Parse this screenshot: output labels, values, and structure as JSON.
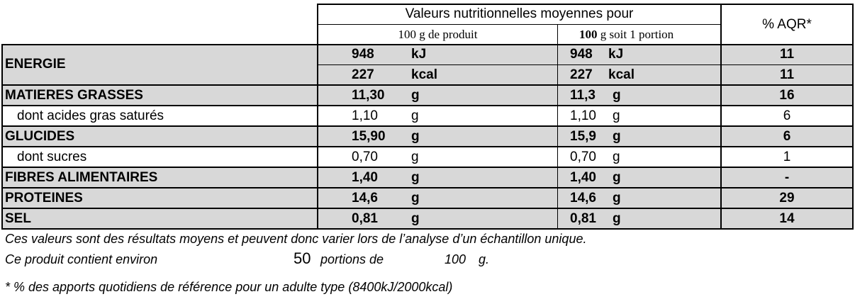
{
  "header": {
    "group_title": "Valeurs nutritionnelles moyennes pour",
    "col1_title": "100 g de produit",
    "col2_qty": "100",
    "col2_rest": " g soit 1 portion",
    "col3_title": "% AQR*"
  },
  "rows": [
    {
      "label": "ENERGIE",
      "bold": true,
      "shaded": true,
      "sub": [
        {
          "v1": "948",
          "u1": "kJ",
          "v2": "948",
          "u2": "kJ",
          "aqr": "11"
        },
        {
          "v1": "227",
          "u1": "kcal",
          "v2": "227",
          "u2": "kcal",
          "aqr": "11"
        }
      ]
    },
    {
      "label": "MATIERES GRASSES",
      "bold": true,
      "shaded": true,
      "v1": "11,30",
      "u1": "g",
      "v2": "11,3",
      "u2": "g",
      "aqr": "16"
    },
    {
      "label": "dont acides gras saturés",
      "bold": false,
      "shaded": false,
      "v1": "1,10",
      "u1": "g",
      "v2": "1,10",
      "u2": "g",
      "aqr": "6"
    },
    {
      "label": "GLUCIDES",
      "bold": true,
      "shaded": true,
      "v1": "15,90",
      "u1": "g",
      "v2": "15,9",
      "u2": "g",
      "aqr": "6"
    },
    {
      "label": "dont sucres",
      "bold": false,
      "shaded": false,
      "v1": "0,70",
      "u1": "g",
      "v2": "0,70",
      "u2": "g",
      "aqr": "1"
    },
    {
      "label": "FIBRES ALIMENTAIRES",
      "bold": true,
      "shaded": true,
      "v1": "1,40",
      "u1": "g",
      "v2": "1,40",
      "u2": "g",
      "aqr": "-"
    },
    {
      "label": "PROTEINES",
      "bold": true,
      "shaded": true,
      "v1": "14,6",
      "u1": "g",
      "v2": "14,6",
      "u2": "g",
      "aqr": "29"
    },
    {
      "label": "SEL",
      "bold": true,
      "shaded": true,
      "v1": "0,81",
      "u1": "g",
      "v2": "0,81",
      "u2": "g",
      "aqr": "14"
    }
  ],
  "footer": {
    "note1": "Ces valeurs sont des résultats moyens et peuvent donc varier lors de l’analyse d’un échantillon unique.",
    "note2_prefix": "Ce produit contient environ",
    "portions_count": "50",
    "portions_de": "portions de",
    "portion_size": "100",
    "portion_unit": "g.",
    "note3": "* % des apports quotidiens de référence pour un adulte type (8400kJ/2000kcal)"
  }
}
